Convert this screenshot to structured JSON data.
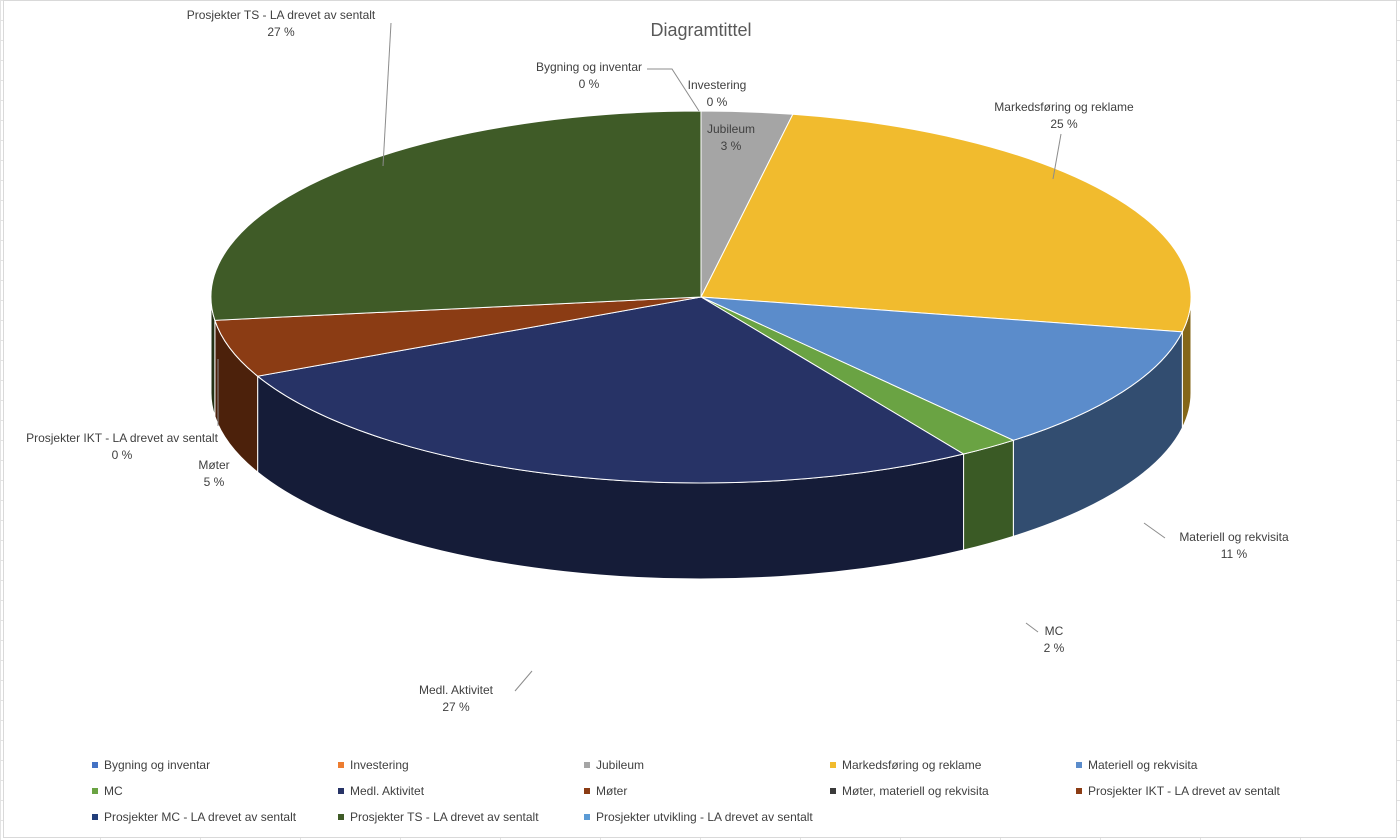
{
  "chart_data": {
    "type": "pie",
    "style": "3d",
    "title": "Diagramtittel",
    "categories": [
      "Bygning og inventar",
      "Investering",
      "Jubileum",
      "Markedsføring og reklame",
      "Materiell og rekvisita",
      "MC",
      "Medl. Aktivitet",
      "Møter",
      "Møter, materiell og rekvisita",
      "Prosjekter IKT - LA drevet av sentalt",
      "Prosjekter MC - LA drevet av sentalt",
      "Prosjekter TS - LA drevet av sentalt",
      "Prosjekter utvikling - LA drevet av sentalt"
    ],
    "values": [
      0.0,
      0.0,
      3.0,
      25.0,
      11.0,
      2.0,
      27.0,
      5.0,
      0.0,
      0.0,
      0.0,
      27.0,
      0.0
    ],
    "colors": [
      "#4472C4",
      "#ED7D31",
      "#A5A5A5",
      "#F1BB2E",
      "#5B8CCB",
      "#6AA343",
      "#273366",
      "#8B3C14",
      "#3B3B3B",
      "#8B3C14",
      "#223E7A",
      "#3F5B27",
      "#5B9BD5"
    ],
    "data_labels": [
      {
        "index": 0,
        "name": "Bygning og inventar",
        "pct": "0 %"
      },
      {
        "index": 1,
        "name": "Investering",
        "pct": "0 %"
      },
      {
        "index": 2,
        "name": "Jubileum",
        "pct": "3 %"
      },
      {
        "index": 3,
        "name": "Markedsføring og reklame",
        "pct": "25 %"
      },
      {
        "index": 4,
        "name": "Materiell og rekvisita",
        "pct": "11 %"
      },
      {
        "index": 5,
        "name": "MC",
        "pct": "2 %"
      },
      {
        "index": 6,
        "name": "Medl. Aktivitet",
        "pct": "27 %"
      },
      {
        "index": 7,
        "name": "Møter",
        "pct": "5 %"
      },
      {
        "index": 9,
        "name": "Prosjekter IKT - LA drevet av sentalt",
        "pct": "0 %"
      },
      {
        "index": 11,
        "name": "Prosjekter TS - LA drevet av sentalt",
        "pct": "27 %"
      }
    ],
    "legend_position": "bottom"
  }
}
